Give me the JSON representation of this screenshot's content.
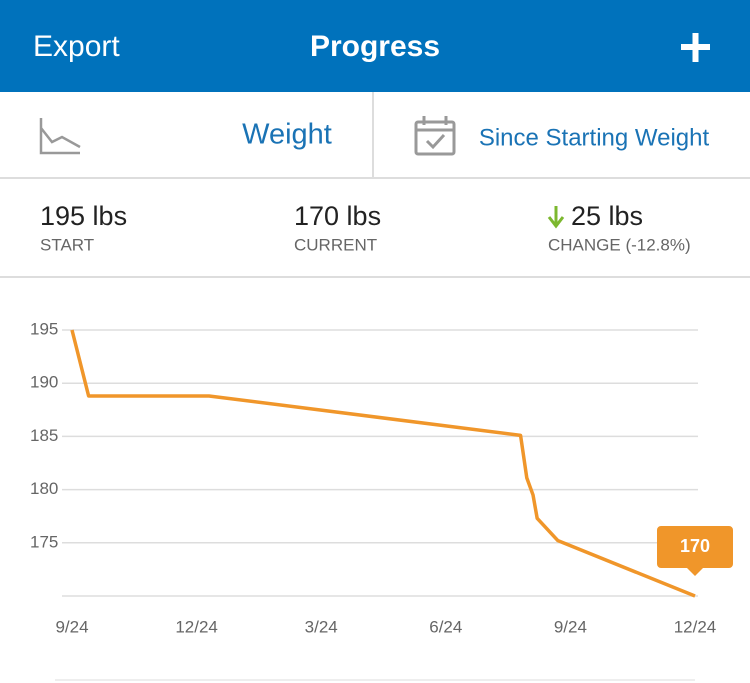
{
  "header": {
    "left": "Export",
    "title": "Progress"
  },
  "filters": {
    "metric": "Weight",
    "range": "Since Starting Weight"
  },
  "stats": [
    {
      "value": "195 lbs",
      "label": "START"
    },
    {
      "value": "170 lbs",
      "label": "CURRENT"
    },
    {
      "value": "25 lbs",
      "label": "CHANGE (-12.8%)"
    }
  ],
  "chart_data": {
    "type": "line",
    "x": [
      0,
      0.4,
      3.3,
      10.8,
      10.95,
      11.1,
      11.2,
      11.7,
      15
    ],
    "values": [
      195,
      188.8,
      188.8,
      185.1,
      181.1,
      179.5,
      177.3,
      175.2,
      170
    ],
    "color": "#f0962a",
    "xlim": [
      0,
      15
    ],
    "xticks": [
      {
        "value": 0,
        "label": "9/24"
      },
      {
        "value": 3,
        "label": "12/24"
      },
      {
        "value": 6,
        "label": "3/24"
      },
      {
        "value": 9,
        "label": "6/24"
      },
      {
        "value": 12,
        "label": "9/24"
      },
      {
        "value": 15,
        "label": "12/24"
      }
    ],
    "ylim": [
      170,
      195
    ],
    "yticks": [
      175,
      180,
      185,
      190,
      195
    ],
    "grid": true,
    "callout": {
      "x": 15,
      "value": 170
    }
  }
}
